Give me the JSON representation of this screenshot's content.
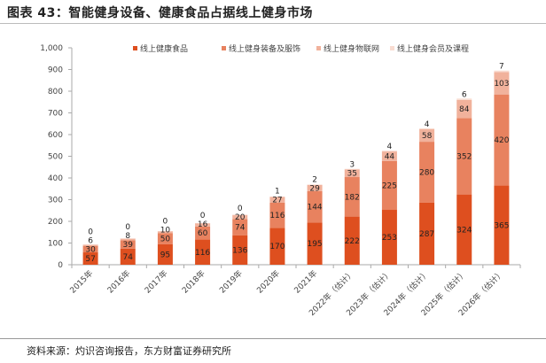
{
  "title": "图表 43：智能健身设备、健康食品占据线上健身市场",
  "source": "资料来源：灼识咨询报告，东方财富证券研究所",
  "chart_data": {
    "type": "bar",
    "stacked": true,
    "title": "",
    "xlabel": "",
    "ylabel": "",
    "ylim": [
      0,
      1000
    ],
    "yticks": [
      0,
      100,
      200,
      300,
      400,
      500,
      600,
      700,
      800,
      900,
      1000
    ],
    "ytick_labels": [
      "0",
      "100",
      "200",
      "300",
      "400",
      "500",
      "600",
      "700",
      "800",
      "900",
      "1,000"
    ],
    "grid": false,
    "legend_position": "top",
    "categories": [
      "2015年",
      "2016年",
      "2017年",
      "2018年",
      "2019年",
      "2020年",
      "2021年",
      "2022年（估计）",
      "2023年（估计）",
      "2024年（估计）",
      "2025年（估计）",
      "2026年（估计）"
    ],
    "series": [
      {
        "name": "线上健康食品",
        "color": "#DE4F1F",
        "values": [
          57,
          74,
          95,
          116,
          136,
          170,
          195,
          222,
          253,
          287,
          324,
          365
        ]
      },
      {
        "name": "线上健身装备及服饰",
        "color": "#E8825F",
        "values": [
          30,
          39,
          50,
          60,
          74,
          116,
          144,
          182,
          225,
          280,
          352,
          420
        ]
      },
      {
        "name": "线上健身物联网",
        "color": "#F1B29C",
        "values": [
          6,
          8,
          10,
          16,
          20,
          27,
          29,
          35,
          44,
          58,
          84,
          103
        ]
      },
      {
        "name": "线上健身会员及课程",
        "color": "#F9DCD1",
        "values": [
          0,
          0,
          0,
          0,
          0,
          1,
          2,
          3,
          4,
          4,
          6,
          7
        ]
      }
    ]
  }
}
